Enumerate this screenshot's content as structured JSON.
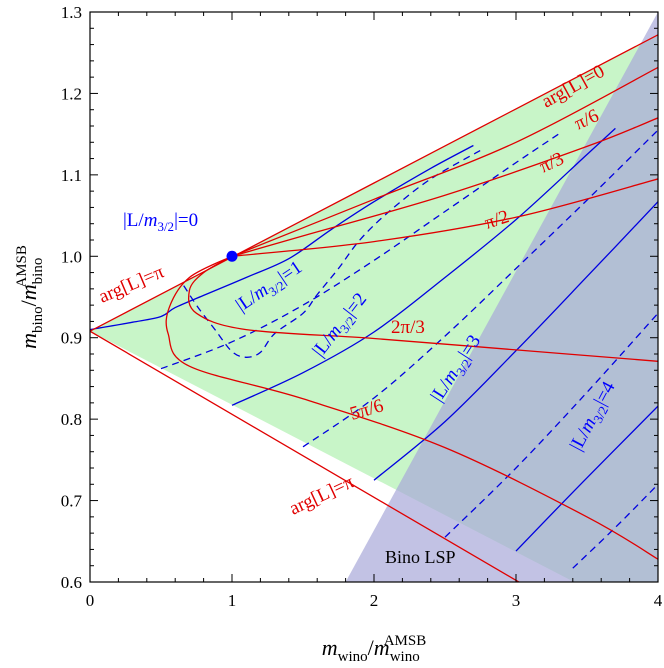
{
  "chart_data": {
    "type": "line",
    "xlim": [
      0,
      4
    ],
    "ylim": [
      0.6,
      1.3
    ],
    "x_ticks": [
      "0",
      "1",
      "2",
      "3",
      "4"
    ],
    "y_ticks": [
      "0.6",
      "0.7",
      "0.8",
      "0.9",
      "1.0",
      "1.1",
      "1.2",
      "1.3"
    ],
    "xlabel": {
      "main": "m",
      "sub": "wino",
      "slash": "/",
      "main2": "m",
      "sub2": "wino",
      "sup2": "AMSB"
    },
    "ylabel": {
      "main": "m",
      "sub": "bino",
      "slash": "/",
      "main2": "m",
      "sub2": "bino",
      "sup2": "AMSB"
    },
    "grid": false,
    "colors": {
      "phase_curve": "#e00000",
      "modulus_curve": "#0000e0",
      "allowed_region": "#c8f5c8",
      "bino_lsp_region": "#a8a8d8"
    },
    "regions": [
      {
        "name": "allowed",
        "color": "#c8f5c8"
      },
      {
        "name": "Bino LSP",
        "label": "Bino LSP",
        "color": "#a8a8d8"
      }
    ],
    "boundary": {
      "upper": [
        [
          0,
          0.908
        ],
        [
          4,
          1.272
        ]
      ],
      "lower": [
        [
          0,
          0.908
        ],
        [
          4,
          0.5
        ]
      ]
    },
    "point": {
      "x": 1,
      "y": 1.0,
      "color": "#0000ff"
    },
    "phase_curves": [
      {
        "label": "0",
        "points": [
          [
            0,
            0.908
          ],
          [
            1,
            0.999
          ],
          [
            2,
            1.09
          ],
          [
            3,
            1.181
          ],
          [
            4,
            1.272
          ]
        ]
      },
      {
        "label": "π/6",
        "points": [
          [
            1.0,
            1.0
          ],
          [
            2,
            1.07
          ],
          [
            3,
            1.14
          ],
          [
            4,
            1.232
          ]
        ]
      },
      {
        "label": "π/3",
        "points": [
          [
            1.0,
            1.0
          ],
          [
            1.5,
            1.025
          ],
          [
            2.5,
            1.075
          ],
          [
            3.5,
            1.135
          ],
          [
            4,
            1.17
          ]
        ]
      },
      {
        "label": "π/2",
        "points": [
          [
            1.0,
            1.0
          ],
          [
            2,
            1.018
          ],
          [
            3,
            1.048
          ],
          [
            4,
            1.095
          ]
        ]
      },
      {
        "label": "2π/3",
        "points": [
          [
            1.0,
            1.0
          ],
          [
            0.8,
            0.98
          ],
          [
            0.7,
            0.958
          ],
          [
            0.75,
            0.93
          ],
          [
            1.1,
            0.91
          ],
          [
            2,
            0.899
          ],
          [
            3,
            0.885
          ],
          [
            4,
            0.871
          ]
        ]
      },
      {
        "label": "5π/6",
        "points": [
          [
            1.0,
            1.0
          ],
          [
            0.7,
            0.974
          ],
          [
            0.56,
            0.938
          ],
          [
            0.55,
            0.905
          ],
          [
            0.7,
            0.865
          ],
          [
            1.5,
            0.825
          ],
          [
            2.5,
            0.765
          ],
          [
            3.5,
            0.68
          ],
          [
            4,
            0.628
          ]
        ]
      },
      {
        "label": "π",
        "points": [
          [
            0,
            0.908
          ],
          [
            4,
            0.5
          ]
        ]
      }
    ],
    "modulus_curves": [
      {
        "label": "0.5",
        "style": "dashed",
        "points": [
          [
            0.66,
            0.964
          ],
          [
            0.76,
            0.9375
          ],
          [
            0.88,
            0.91
          ],
          [
            1.0,
            0.883
          ],
          [
            1.1,
            0.876
          ],
          [
            1.2,
            0.882
          ],
          [
            1.3,
            0.905
          ],
          [
            1.5,
            0.93
          ],
          [
            1.6,
            0.953
          ],
          [
            1.75,
            0.985
          ],
          [
            1.9,
            1.02
          ],
          [
            2.1,
            1.054
          ],
          [
            2.4,
            1.095
          ],
          [
            2.75,
            1.13
          ]
        ]
      },
      {
        "label": "1",
        "style": "solid",
        "points": [
          [
            0,
            0.91
          ],
          [
            0.3,
            0.919
          ],
          [
            0.5,
            0.926
          ],
          [
            0.6,
            0.937
          ],
          [
            0.8,
            0.952
          ],
          [
            1.1,
            0.974
          ],
          [
            1.4,
            0.997
          ],
          [
            1.7,
            1.033
          ],
          [
            2.0,
            1.067
          ],
          [
            2.4,
            1.108
          ],
          [
            2.7,
            1.136
          ]
        ]
      },
      {
        "label": "1.5",
        "style": "dashed",
        "points": [
          [
            0.5,
            0.862
          ],
          [
            1.0,
            0.895
          ],
          [
            1.5,
            0.94
          ],
          [
            2.0,
            0.995
          ],
          [
            2.5,
            1.055
          ],
          [
            3.0,
            1.115
          ],
          [
            3.3,
            1.15
          ]
        ]
      },
      {
        "label": "2",
        "style": "solid",
        "points": [
          [
            1.0,
            0.817
          ],
          [
            1.5,
            0.857
          ],
          [
            2.0,
            0.907
          ],
          [
            2.5,
            0.974
          ],
          [
            3.0,
            1.045
          ],
          [
            3.5,
            1.125
          ],
          [
            3.7,
            1.157
          ]
        ]
      },
      {
        "label": "2.5",
        "style": "dashed",
        "points": [
          [
            1.5,
            0.766
          ],
          [
            2.0,
            0.826
          ],
          [
            2.5,
            0.902
          ],
          [
            3.0,
            0.985
          ],
          [
            3.5,
            1.069
          ],
          [
            4.0,
            1.155
          ]
        ]
      },
      {
        "label": "3",
        "style": "solid",
        "points": [
          [
            2.0,
            0.725
          ],
          [
            2.5,
            0.797
          ],
          [
            3.0,
            0.884
          ],
          [
            3.5,
            0.975
          ],
          [
            4.0,
            1.067
          ]
        ]
      },
      {
        "label": "3.5",
        "style": "dashed",
        "points": [
          [
            2.5,
            0.655
          ],
          [
            3.0,
            0.74
          ],
          [
            3.5,
            0.833
          ],
          [
            4.0,
            0.93
          ]
        ]
      },
      {
        "label": "4",
        "style": "solid",
        "points": [
          [
            3.0,
            0.638
          ],
          [
            3.5,
            0.728
          ],
          [
            4.0,
            0.816
          ]
        ]
      },
      {
        "label": "4.5",
        "style": "dashed",
        "points": [
          [
            3.4,
            0.617
          ],
          [
            3.7,
            0.667
          ],
          [
            4.0,
            0.72
          ]
        ]
      }
    ],
    "annotations": [
      {
        "name": "modulus-zero",
        "text": "|L/m3/2|=0",
        "color": "blue"
      },
      {
        "name": "modulus-1",
        "text": "|L/m3/2|=1",
        "color": "blue"
      },
      {
        "name": "modulus-2",
        "text": "|L/m3/2|=2",
        "color": "blue"
      },
      {
        "name": "modulus-3",
        "text": "|L/m3/2|=3",
        "color": "blue"
      },
      {
        "name": "modulus-4",
        "text": "|L/m3/2|=4",
        "color": "blue"
      },
      {
        "name": "arg-0",
        "text": "arg[L]=0",
        "color": "red"
      },
      {
        "name": "arg-pi6",
        "text": "π/6",
        "color": "red"
      },
      {
        "name": "arg-pi3",
        "text": "π/3",
        "color": "red"
      },
      {
        "name": "arg-pi2",
        "text": "π/2",
        "color": "red"
      },
      {
        "name": "arg-2pi3",
        "text": "2π/3",
        "color": "red"
      },
      {
        "name": "arg-5pi6",
        "text": "5π/6",
        "color": "red"
      },
      {
        "name": "arg-pi-upper",
        "text": "arg[L]=π",
        "color": "red"
      },
      {
        "name": "arg-pi-lower",
        "text": "arg[L]=π",
        "color": "red"
      }
    ]
  }
}
